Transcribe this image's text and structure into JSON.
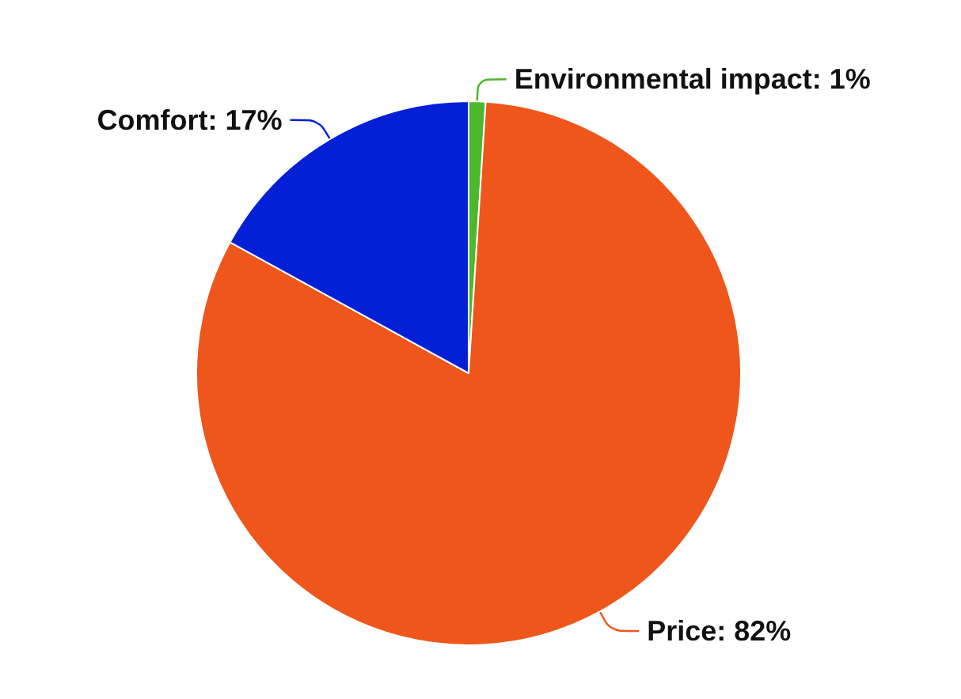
{
  "chart_data": {
    "type": "pie",
    "categories": [
      "Environmental impact",
      "Price",
      "Comfort"
    ],
    "values": [
      1,
      82,
      17
    ],
    "value_labels": [
      "1%",
      "82%",
      "17%"
    ],
    "colors": [
      "#4cb82c",
      "#ee561b",
      "#0420d6"
    ],
    "legend": false
  }
}
